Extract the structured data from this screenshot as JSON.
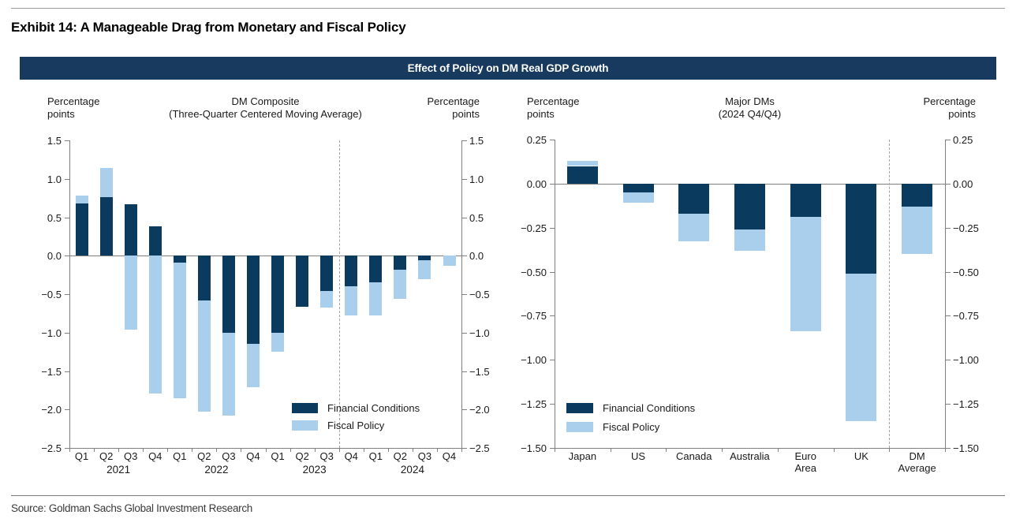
{
  "page": {
    "exhibit_title": "Exhibit 14: A Manageable Drag from Monetary and Fiscal Policy",
    "banner_title": "Effect of Policy on DM Real GDP Growth",
    "source": "Source: Goldman Sachs Global Investment Research"
  },
  "colors": {
    "financial_conditions": "#0b3a5f",
    "fiscal_policy": "#a9cfec",
    "banner_bg": "#173a5e",
    "axis": "#808080"
  },
  "chart_data": [
    {
      "type": "bar",
      "stacked": true,
      "title": "DM Composite",
      "subtitle": "(Three-Quarter Centered Moving Average)",
      "y_axis_label_left": "Percentage points",
      "y_axis_label_right": "Percentage points",
      "categories": [
        "Q1",
        "Q2",
        "Q3",
        "Q4",
        "Q1",
        "Q2",
        "Q3",
        "Q4",
        "Q1",
        "Q2",
        "Q3",
        "Q4",
        "Q1",
        "Q2",
        "Q3",
        "Q4"
      ],
      "year_groups": [
        "2021",
        "2022",
        "2023",
        "2024"
      ],
      "series": [
        {
          "name": "Financial Conditions",
          "color": "#0b3a5f",
          "values": [
            0.68,
            0.76,
            0.67,
            0.38,
            -0.09,
            -0.58,
            -1.0,
            -1.15,
            -1.0,
            -0.66,
            -0.46,
            -0.4,
            -0.35,
            -0.18,
            -0.06,
            0.0
          ]
        },
        {
          "name": "Fiscal Policy",
          "color": "#a9cfec",
          "values": [
            0.1,
            0.38,
            -0.96,
            -1.79,
            -1.76,
            -1.45,
            -1.08,
            -0.56,
            -0.25,
            0.0,
            -0.22,
            -0.38,
            -0.43,
            -0.38,
            -0.25,
            -0.13
          ]
        }
      ],
      "ylim": [
        -2.5,
        1.5
      ],
      "ytick_step": 0.5,
      "ytick_decimals": 1,
      "grid": false,
      "divider_after_index": 10,
      "legend_entries": [
        "Financial Conditions",
        "Fiscal Policy"
      ],
      "legend_position": "inside-bottom-right"
    },
    {
      "type": "bar",
      "stacked": true,
      "title": "Major DMs",
      "subtitle": "(2024 Q4/Q4)",
      "y_axis_label_left": "Percentage points",
      "y_axis_label_right": "Percentage points",
      "categories": [
        "Japan",
        "US",
        "Canada",
        "Australia",
        "Euro Area",
        "UK",
        "DM Average"
      ],
      "series": [
        {
          "name": "Financial Conditions",
          "color": "#0b3a5f",
          "values": [
            0.1,
            -0.05,
            -0.17,
            -0.26,
            -0.19,
            -0.51,
            -0.13
          ]
        },
        {
          "name": "Fiscal Policy",
          "color": "#a9cfec",
          "values": [
            0.03,
            -0.06,
            -0.16,
            -0.12,
            -0.65,
            -0.84,
            -0.27
          ]
        }
      ],
      "ylim": [
        -1.5,
        0.25
      ],
      "ytick_step": 0.25,
      "ytick_decimals": 2,
      "grid": false,
      "divider_after_index": 5,
      "legend_entries": [
        "Financial Conditions",
        "Fiscal Policy"
      ],
      "legend_position": "inside-bottom-left"
    }
  ]
}
